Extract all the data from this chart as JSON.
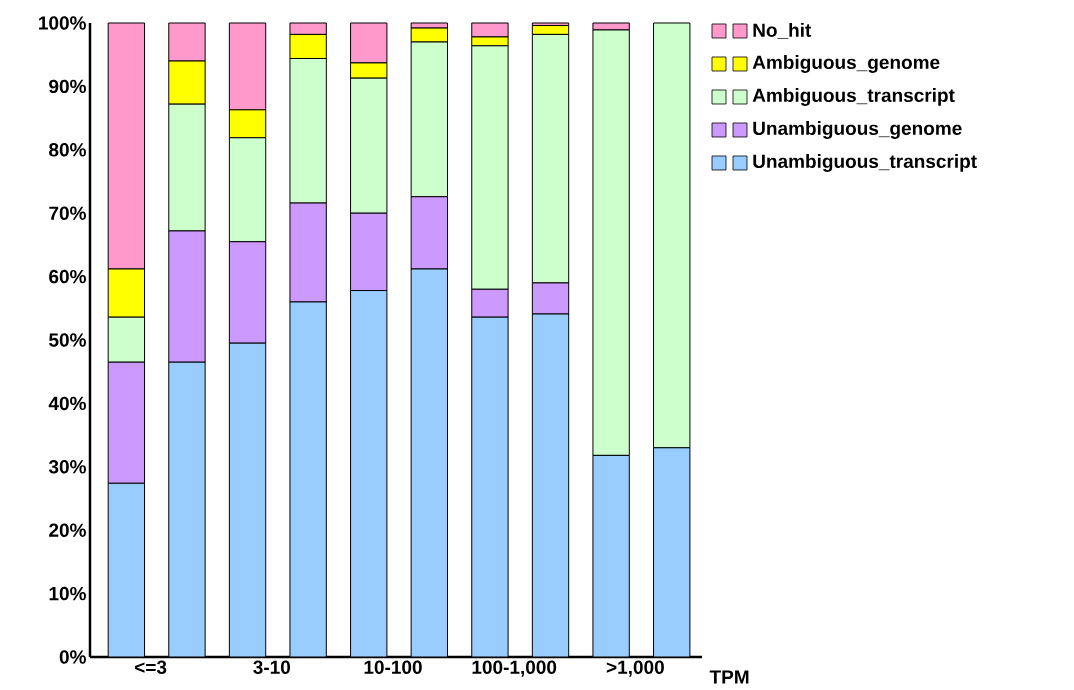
{
  "chart_data": {
    "type": "bar",
    "stacked": true,
    "xlabel": "TPM",
    "categories": [
      "<=3",
      null,
      "3-10",
      null,
      "10-100",
      null,
      "100-1,000",
      null,
      ">1,000",
      null
    ],
    "series": [
      {
        "name": "Unambiguous_transcript",
        "color": "#99ccff",
        "values": [
          27.4,
          46.5,
          49.5,
          56.0,
          57.8,
          61.2,
          53.6,
          54.1,
          31.8,
          33.0
        ]
      },
      {
        "name": "Unambiguous_genome",
        "color": "#cc99ff",
        "values": [
          19.1,
          20.7,
          16.0,
          15.6,
          12.2,
          11.4,
          4.4,
          4.9,
          0,
          0
        ]
      },
      {
        "name": "Ambiguous_transcript",
        "color": "#ccffcc",
        "values": [
          7.1,
          20.0,
          16.4,
          22.8,
          21.3,
          24.4,
          38.4,
          39.2,
          67.1,
          67.0
        ]
      },
      {
        "name": "Ambiguous_genome",
        "color": "#ffff00",
        "values": [
          7.6,
          6.8,
          4.4,
          3.8,
          2.4,
          2.2,
          1.4,
          1.4,
          0,
          0
        ]
      },
      {
        "name": "No_hit",
        "color": "#ff99cc",
        "values": [
          38.8,
          6.0,
          13.7,
          1.8,
          6.3,
          0.8,
          2.2,
          0.4,
          1.1,
          0
        ]
      }
    ],
    "ylim": [
      0,
      100
    ],
    "yticks": [
      {
        "value": 0,
        "label": "0%"
      },
      {
        "value": 10,
        "label": "10%"
      },
      {
        "value": 20,
        "label": "20%"
      },
      {
        "value": 30,
        "label": "30%"
      },
      {
        "value": 40,
        "label": "40%"
      },
      {
        "value": 50,
        "label": "50%"
      },
      {
        "value": 60,
        "label": "60%"
      },
      {
        "value": 70,
        "label": "70%"
      },
      {
        "value": 80,
        "label": "80%"
      },
      {
        "value": 90,
        "label": "90%"
      },
      {
        "value": 100,
        "label": "100%"
      }
    ],
    "legend": "top right"
  }
}
